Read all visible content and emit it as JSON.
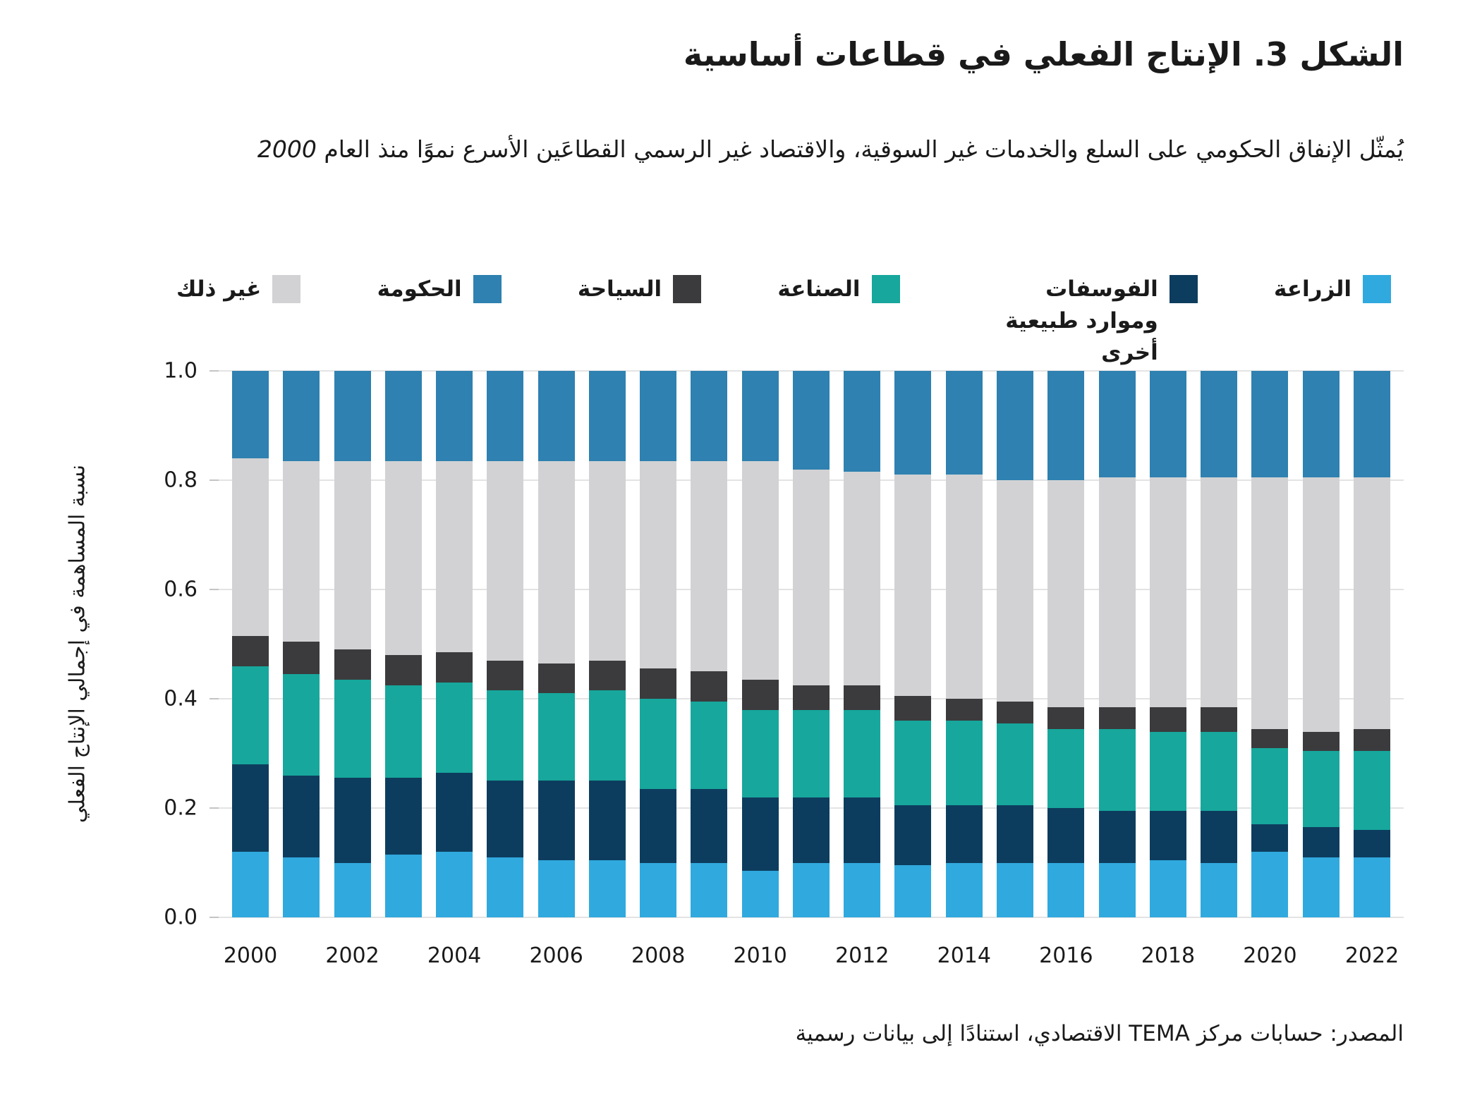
{
  "header": {
    "title": "الشكل 3. الإنتاج الفعلي في قطاعات أساسية",
    "subtitle_line1": "يُمثّل الإنفاق الحكومي على السلع والخدمات غير السوقية، والاقتصاد غير الرسمي القطاعَين الأسرع",
    "subtitle_line2_prefix": "نموًا منذ العام",
    "subtitle_year": "2000"
  },
  "legend": {
    "items": [
      {
        "label": "الزراعة",
        "color": "#30a9de"
      },
      {
        "label": "الفوسفات وموارد طبيعية أخرى",
        "color": "#0d3d5e"
      },
      {
        "label": "الصناعة",
        "color": "#17a79c"
      },
      {
        "label": "السياحة",
        "color": "#3b3b3d"
      },
      {
        "label": "الحكومة",
        "color": "#2e81b0"
      },
      {
        "label": "غير ذلك",
        "color": "#d2d2d4"
      }
    ]
  },
  "chart_data": {
    "type": "bar",
    "stacked": true,
    "title": "الشكل 3. الإنتاج الفعلي في قطاعات أساسية",
    "ylabel": "نسبة المساهمة في إجمالي الإنتاج الفعلي",
    "xlabel": "",
    "ylim": [
      0.0,
      1.0
    ],
    "grid": true,
    "legend_position": "top",
    "yticks": [
      "1.0",
      "0.8",
      "0.6",
      "0.4",
      "0.2",
      "0.0"
    ],
    "xtick_labels": [
      "2000",
      "2002",
      "2004",
      "2006",
      "2008",
      "2010",
      "2012",
      "2014",
      "2016",
      "2018",
      "2020",
      "2022"
    ],
    "categories": [
      2000,
      2001,
      2002,
      2003,
      2004,
      2005,
      2006,
      2007,
      2008,
      2009,
      2010,
      2011,
      2012,
      2013,
      2014,
      2015,
      2016,
      2017,
      2018,
      2019,
      2020,
      2021,
      2022
    ],
    "series": [
      {
        "name": "الزراعة",
        "color": "#30a9de",
        "values": [
          0.12,
          0.11,
          0.1,
          0.115,
          0.12,
          0.11,
          0.105,
          0.105,
          0.1,
          0.1,
          0.085,
          0.1,
          0.1,
          0.095,
          0.1,
          0.1,
          0.1,
          0.1,
          0.105,
          0.1,
          0.12,
          0.11,
          0.11
        ]
      },
      {
        "name": "الفوسفات وموارد طبيعية أخرى",
        "color": "#0d3d5e",
        "values": [
          0.16,
          0.15,
          0.155,
          0.14,
          0.145,
          0.14,
          0.145,
          0.145,
          0.135,
          0.135,
          0.135,
          0.12,
          0.12,
          0.11,
          0.105,
          0.105,
          0.1,
          0.095,
          0.09,
          0.095,
          0.05,
          0.055,
          0.05
        ]
      },
      {
        "name": "الصناعة",
        "color": "#17a79c",
        "values": [
          0.18,
          0.185,
          0.18,
          0.17,
          0.165,
          0.165,
          0.16,
          0.165,
          0.165,
          0.16,
          0.16,
          0.16,
          0.16,
          0.155,
          0.155,
          0.15,
          0.145,
          0.15,
          0.145,
          0.145,
          0.14,
          0.14,
          0.145
        ]
      },
      {
        "name": "السياحة",
        "color": "#3b3b3d",
        "values": [
          0.055,
          0.06,
          0.055,
          0.055,
          0.055,
          0.055,
          0.055,
          0.055,
          0.055,
          0.055,
          0.055,
          0.045,
          0.045,
          0.045,
          0.04,
          0.04,
          0.04,
          0.04,
          0.045,
          0.045,
          0.035,
          0.035,
          0.04
        ]
      },
      {
        "name": "غير ذلك",
        "color": "#d2d2d4",
        "values": [
          0.325,
          0.33,
          0.345,
          0.355,
          0.35,
          0.365,
          0.37,
          0.365,
          0.38,
          0.385,
          0.4,
          0.395,
          0.39,
          0.405,
          0.41,
          0.405,
          0.415,
          0.42,
          0.42,
          0.42,
          0.46,
          0.465,
          0.46
        ]
      },
      {
        "name": "الحكومة",
        "color": "#2e81b0",
        "values": [
          0.16,
          0.165,
          0.165,
          0.165,
          0.165,
          0.165,
          0.165,
          0.165,
          0.165,
          0.165,
          0.165,
          0.18,
          0.185,
          0.19,
          0.19,
          0.2,
          0.2,
          0.195,
          0.195,
          0.195,
          0.195,
          0.195,
          0.195
        ]
      }
    ]
  },
  "source": {
    "text": "المصدر: حسابات مركز TEMA الاقتصادي، استنادًا إلى بيانات رسمية"
  },
  "colors": {
    "text": "#1a1a1a",
    "gridline": "#e3e3e3",
    "background": "#ffffff"
  }
}
